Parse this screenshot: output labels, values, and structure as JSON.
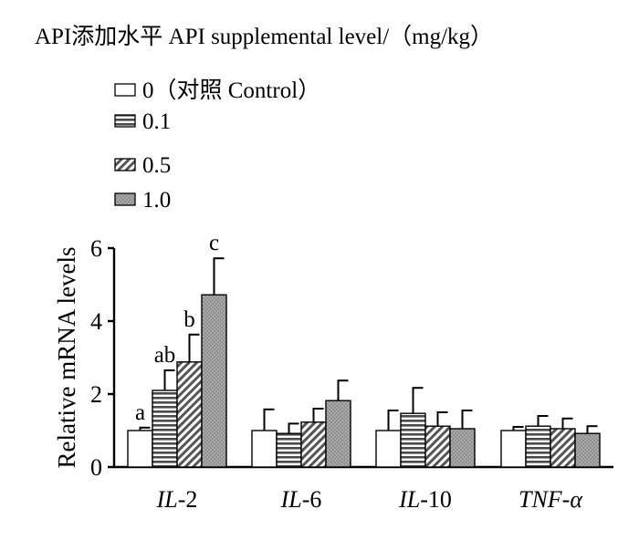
{
  "chart_data": {
    "type": "bar",
    "legend_title": "API添加水平 API supplemental level/（mg/kg）",
    "legend_placement": "top-left",
    "ylabel": "Relative mRNA levels",
    "xlabel": "",
    "ylim": [
      0,
      6
    ],
    "yticks": [
      "0",
      "2",
      "4",
      "6"
    ],
    "grid": false,
    "categories": [
      "IL-2",
      "IL-6",
      "IL-10",
      "TNF-α"
    ],
    "category_labels": [
      {
        "italic": "IL",
        "rest": "-2"
      },
      {
        "italic": "IL",
        "rest": "-6"
      },
      {
        "italic": "IL",
        "rest": "-10"
      },
      {
        "italic": "TNF-α",
        "rest": ""
      }
    ],
    "series": [
      {
        "name": "0（对照 Control）",
        "pattern": "white",
        "values": [
          1.0,
          1.0,
          1.0,
          1.0
        ],
        "errors": [
          0.08,
          0.58,
          0.55,
          0.1
        ]
      },
      {
        "name": "0.1",
        "pattern": "horizontal",
        "values": [
          2.1,
          0.92,
          1.47,
          1.12
        ],
        "errors": [
          0.55,
          0.27,
          0.7,
          0.28
        ]
      },
      {
        "name": "0.5",
        "pattern": "diagonal",
        "values": [
          2.88,
          1.23,
          1.12,
          1.05
        ],
        "errors": [
          0.75,
          0.37,
          0.38,
          0.28
        ]
      },
      {
        "name": "1.0",
        "pattern": "dotted",
        "values": [
          4.72,
          1.82,
          1.05,
          0.92
        ],
        "errors": [
          1.0,
          0.55,
          0.5,
          0.2
        ]
      }
    ],
    "annotations": [
      {
        "category": "IL-2",
        "series": 0,
        "text": "a"
      },
      {
        "category": "IL-2",
        "series": 1,
        "text": "ab"
      },
      {
        "category": "IL-2",
        "series": 2,
        "text": "b"
      },
      {
        "category": "IL-2",
        "series": 3,
        "text": "c"
      }
    ]
  }
}
